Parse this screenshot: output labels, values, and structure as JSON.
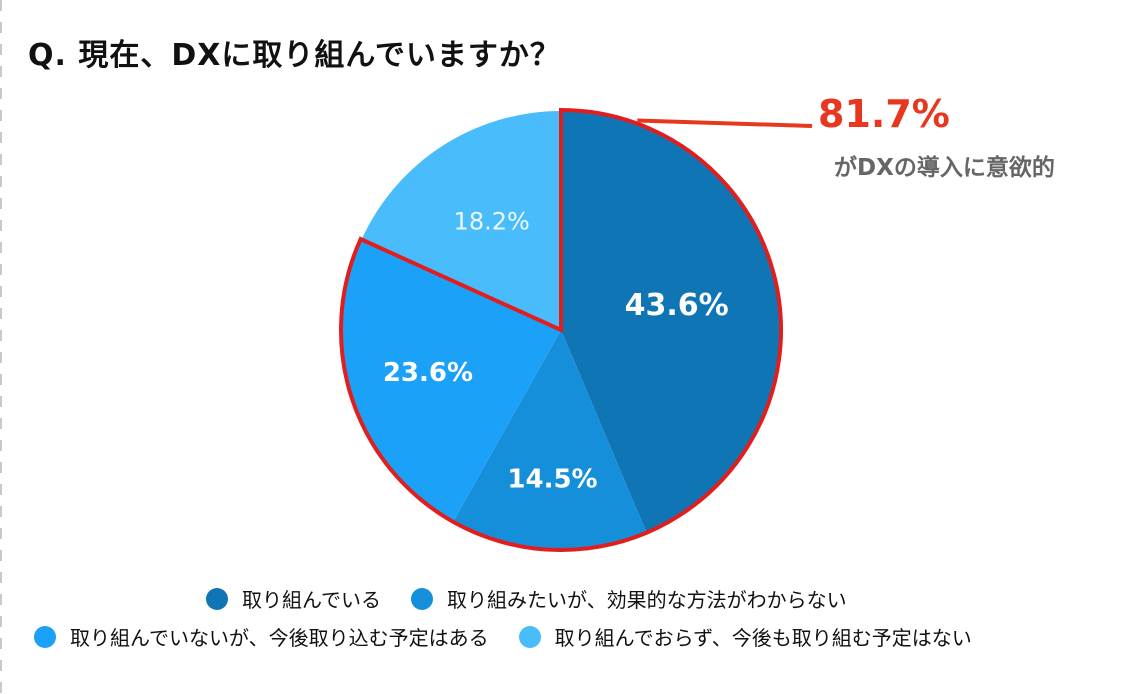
{
  "title": "Q. 現在、DXに取り組んでいますか？",
  "callout": {
    "percent": "81.7%",
    "text": "がDXの導入に意欲的",
    "color": "#e8371f"
  },
  "chart_data": {
    "type": "pie",
    "start_angle_deg": 0,
    "direction": "clockwise",
    "slices": [
      {
        "label": "取り組んでいる",
        "value": 43.6,
        "display": "43.6%",
        "color": "#1075b5",
        "label_color": "#ffffff",
        "label_bold": true
      },
      {
        "label": "取り組みたいが、効果的な方法がわからない",
        "value": 14.5,
        "display": "14.5%",
        "color": "#168fdb",
        "label_color": "#ffffff",
        "label_bold": true
      },
      {
        "label": "取り組んでいないが、今後取り込む予定はある",
        "value": 23.6,
        "display": "23.6%",
        "color": "#1ba1f7",
        "label_color": "#ffffff",
        "label_bold": true
      },
      {
        "label": "取り組んでおらず、今後も取り組む予定はない",
        "value": 18.2,
        "display": "18.2%",
        "color": "#49bcfb",
        "label_color": "#eef8ff",
        "label_bold": false
      }
    ],
    "highlight": {
      "slices": [
        0,
        1,
        2
      ],
      "color": "#e21d1d",
      "total": "81.7%"
    }
  }
}
